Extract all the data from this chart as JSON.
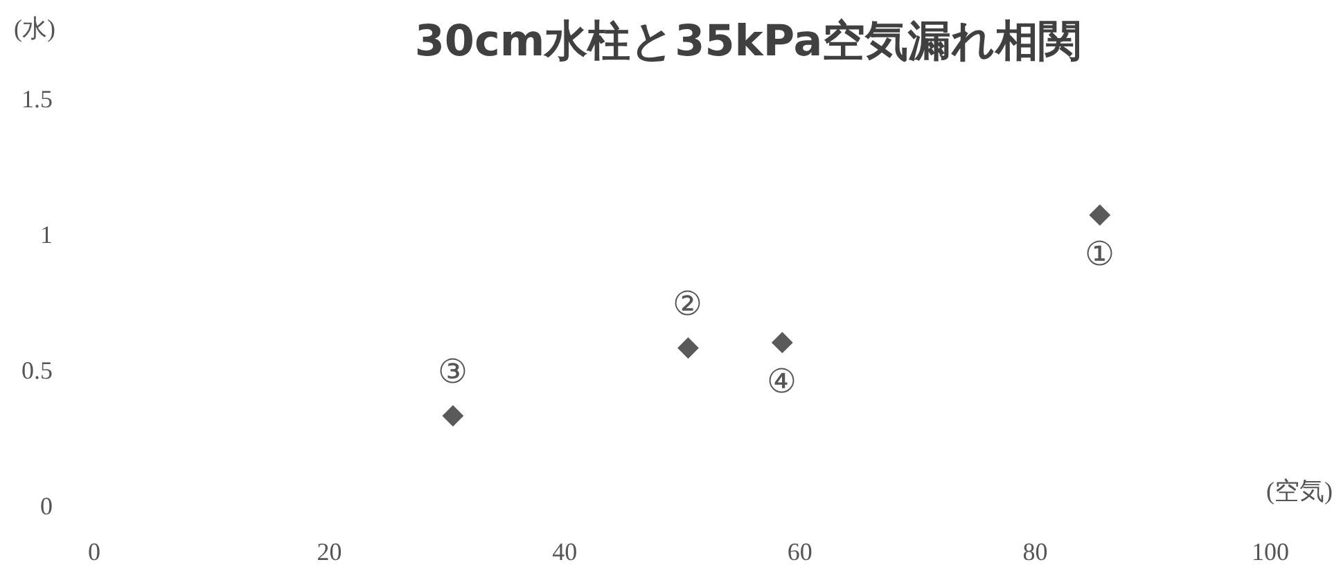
{
  "chart_data": {
    "type": "scatter",
    "title": "30cm水柱と35kPa空気漏れ相関",
    "xlabel": "(空気)",
    "ylabel": "(水)",
    "x": [
      85.5,
      50.5,
      30.5,
      58.5
    ],
    "values": [
      1.08,
      0.59,
      0.34,
      0.61
    ],
    "color": "#5a5a5a",
    "marker": "diamond",
    "grid": false,
    "legend": false,
    "xlim": [
      0,
      100
    ],
    "xticks": [
      0,
      20,
      40,
      60,
      80,
      100
    ],
    "ylim": [
      0,
      1.5
    ],
    "yticks": [
      0,
      0.5,
      1,
      1.5
    ],
    "annotations": [
      {
        "text": "①",
        "x": 85.5,
        "y": 1.08
      },
      {
        "text": "②",
        "x": 50.5,
        "y": 0.59
      },
      {
        "text": "③",
        "x": 30.5,
        "y": 0.34
      },
      {
        "text": "④",
        "x": 58.5,
        "y": 0.61
      }
    ]
  }
}
